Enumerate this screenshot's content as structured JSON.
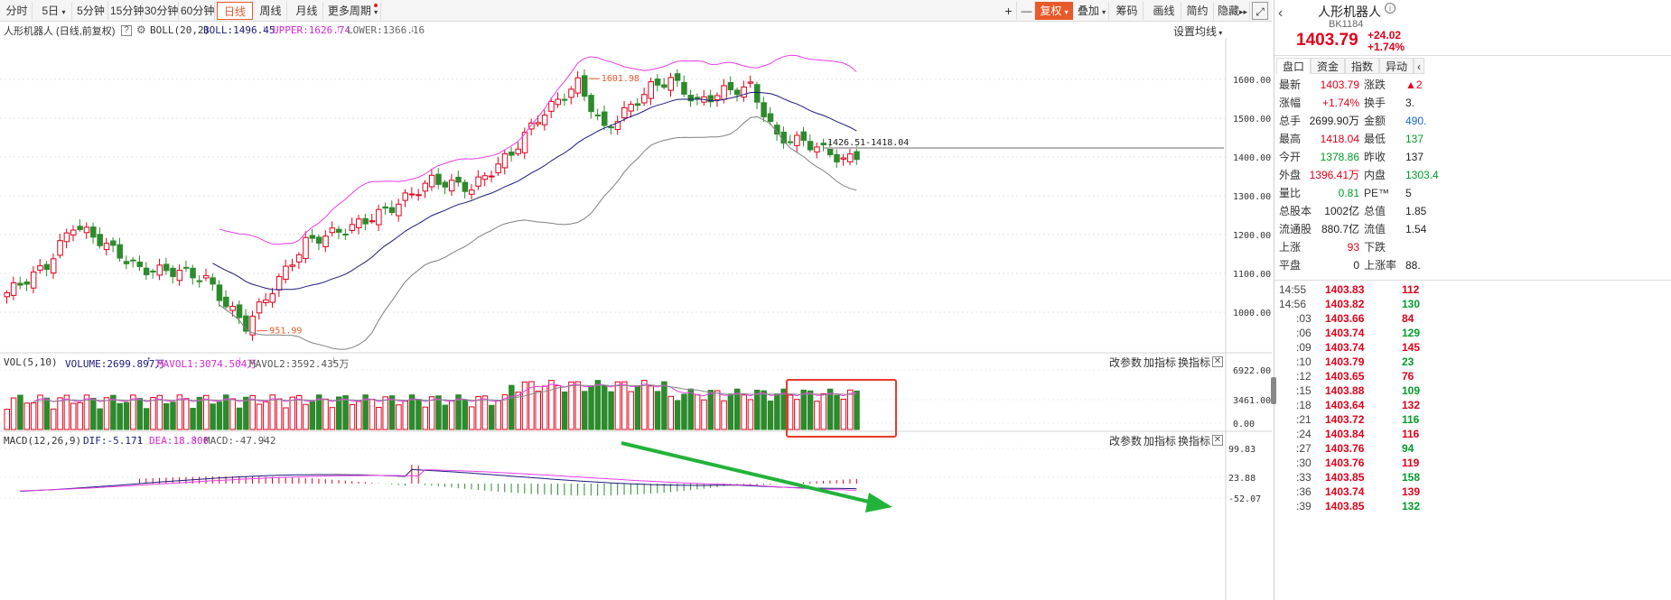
{
  "toolbar": {
    "periods": [
      "分时",
      "5日",
      "5分钟",
      "15分钟",
      "30分钟",
      "60分钟",
      "日线",
      "周线",
      "月线",
      "更多周期"
    ],
    "active_period": "日线",
    "right_buttons": [
      "+",
      "—",
      "复权",
      "叠加",
      "筹码",
      "画线",
      "简约",
      "隐藏"
    ]
  },
  "main_chart": {
    "stock_title": "人形机器人 (日线,前复权)",
    "indicator": "BOLL(20,2)",
    "boll_label": "BOLL:1496.45",
    "upper_label": "UPPER:1626.74",
    "lower_label": "LOWER:1366.16",
    "settings_label": "设置均线",
    "high_marker": "1601.98",
    "low_marker": "951.99",
    "range_label": "1426.51-1418.04",
    "y_ticks": [
      "1600.00",
      "1500.00",
      "1400.00",
      "1300.00",
      "1200.00",
      "1100.00",
      "1000.00"
    ]
  },
  "vol_chart": {
    "indicator": "VOL(5,10)",
    "volume_label": "VOLUME:2699.897万",
    "mavol1_label": "MAVOL1:3074.504万",
    "mavol2_label": "MAVOL2:3592.435万",
    "y_ticks": [
      "6922.00",
      "3461.00",
      "0.00"
    ],
    "buttons": [
      "改参数",
      "加指标",
      "换指标"
    ]
  },
  "macd_chart": {
    "indicator": "MACD(12,26,9)",
    "dif_label": "DIF:-5.171",
    "dea_label": "DEA:18.800",
    "macd_label": "MACD:-47.942",
    "y_ticks": [
      "99.83",
      "23.88",
      "-52.07"
    ],
    "buttons": [
      "改参数",
      "加指标",
      "换指标"
    ]
  },
  "quote_panel": {
    "name": "人形机器人",
    "code": "BK1184",
    "price": "1403.79",
    "change": "+24.02",
    "change_pct": "+1.74%",
    "tabs": [
      "盘口",
      "资金",
      "指数",
      "异动"
    ],
    "rows": [
      {
        "l1": "最新",
        "v1": "1403.79",
        "c1": "red",
        "l2": "涨跌",
        "v2": "▲2",
        "c2": "red"
      },
      {
        "l1": "涨幅",
        "v1": "+1.74%",
        "c1": "red",
        "l2": "换手",
        "v2": "3.",
        "c2": "dark"
      },
      {
        "l1": "总手",
        "v1": "2699.90万",
        "c1": "dark",
        "l2": "金额",
        "v2": "490.",
        "c2": "blue"
      },
      {
        "l1": "最高",
        "v1": "1418.04",
        "c1": "red",
        "l2": "最低",
        "v2": "137",
        "c2": "green"
      },
      {
        "l1": "今开",
        "v1": "1378.86",
        "c1": "green",
        "l2": "昨收",
        "v2": "137",
        "c2": "dark"
      },
      {
        "l1": "外盘",
        "v1": "1396.41万",
        "c1": "red",
        "l2": "内盘",
        "v2": "1303.4",
        "c2": "green"
      },
      {
        "l1": "量比",
        "v1": "0.81",
        "c1": "green",
        "l2": "PE™",
        "v2": "5",
        "c2": "dark"
      },
      {
        "l1": "总股本",
        "v1": "1002亿",
        "c1": "dark",
        "l2": "总值",
        "v2": "1.85",
        "c2": "dark"
      },
      {
        "l1": "流通股",
        "v1": "880.7亿",
        "c1": "dark",
        "l2": "流值",
        "v2": "1.54",
        "c2": "dark"
      },
      {
        "l1": "上涨",
        "v1": "93",
        "c1": "red",
        "l2": "下跌",
        "v2": "",
        "c2": "green"
      },
      {
        "l1": "平盘",
        "v1": "0",
        "c1": "dark",
        "l2": "上涨率",
        "v2": "88.",
        "c2": "dark"
      }
    ],
    "ticks": [
      {
        "t": "14:55",
        "p": "1403.83",
        "v": "112"
      },
      {
        "t": "14:56",
        "p": "1403.82",
        "v": "130"
      },
      {
        "t": ":03",
        "p": "1403.66",
        "v": "84"
      },
      {
        "t": ":06",
        "p": "1403.74",
        "v": "129"
      },
      {
        "t": ":09",
        "p": "1403.74",
        "v": "145"
      },
      {
        "t": ":10",
        "p": "1403.79",
        "v": "23"
      },
      {
        "t": ":12",
        "p": "1403.65",
        "v": "76"
      },
      {
        "t": ":15",
        "p": "1403.88",
        "v": "109"
      },
      {
        "t": ":18",
        "p": "1403.64",
        "v": "132"
      },
      {
        "t": ":21",
        "p": "1403.72",
        "v": "116"
      },
      {
        "t": ":24",
        "p": "1403.84",
        "v": "116"
      },
      {
        "t": ":27",
        "p": "1403.76",
        "v": "94"
      },
      {
        "t": ":30",
        "p": "1403.76",
        "v": "119"
      },
      {
        "t": ":33",
        "p": "1403.85",
        "v": "158"
      },
      {
        "t": ":36",
        "p": "1403.74",
        "v": "139"
      },
      {
        "t": ":39",
        "p": "1403.85",
        "v": "132"
      }
    ]
  },
  "colors": {
    "up": "#e0001b",
    "down": "#2d8a2d",
    "boll_mid": "#1b1b7a",
    "boll_upper": "#e83ee8",
    "boll_lower": "#808080",
    "accent": "#e85a2a",
    "arrow": "#22b33a"
  }
}
